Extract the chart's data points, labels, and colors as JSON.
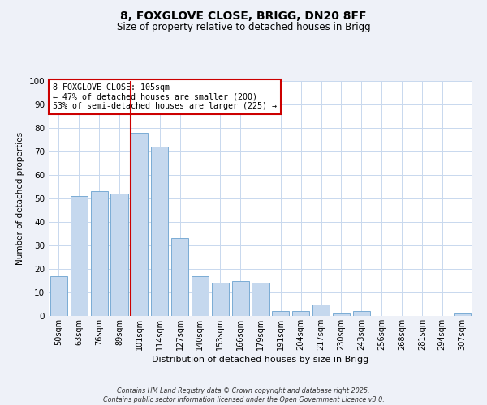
{
  "title": "8, FOXGLOVE CLOSE, BRIGG, DN20 8FF",
  "subtitle": "Size of property relative to detached houses in Brigg",
  "xlabel": "Distribution of detached houses by size in Brigg",
  "ylabel": "Number of detached properties",
  "categories": [
    "50sqm",
    "63sqm",
    "76sqm",
    "89sqm",
    "101sqm",
    "114sqm",
    "127sqm",
    "140sqm",
    "153sqm",
    "166sqm",
    "179sqm",
    "191sqm",
    "204sqm",
    "217sqm",
    "230sqm",
    "243sqm",
    "256sqm",
    "268sqm",
    "281sqm",
    "294sqm",
    "307sqm"
  ],
  "values": [
    17,
    51,
    53,
    52,
    78,
    72,
    33,
    17,
    14,
    15,
    14,
    2,
    2,
    5,
    1,
    2,
    0,
    0,
    0,
    0,
    1
  ],
  "bar_color": "#c5d8ee",
  "bar_edge_color": "#7aacd4",
  "ylim": [
    0,
    100
  ],
  "yticks": [
    0,
    10,
    20,
    30,
    40,
    50,
    60,
    70,
    80,
    90,
    100
  ],
  "vline_x_index": 4,
  "vline_color": "#cc0000",
  "annotation_lines": [
    "8 FOXGLOVE CLOSE: 105sqm",
    "← 47% of detached houses are smaller (200)",
    "53% of semi-detached houses are larger (225) →"
  ],
  "annotation_box_color": "#cc0000",
  "footer_lines": [
    "Contains HM Land Registry data © Crown copyright and database right 2025.",
    "Contains public sector information licensed under the Open Government Licence v3.0."
  ],
  "bg_color": "#eef1f8",
  "plot_bg_color": "#ffffff",
  "grid_color": "#c8d8ee"
}
